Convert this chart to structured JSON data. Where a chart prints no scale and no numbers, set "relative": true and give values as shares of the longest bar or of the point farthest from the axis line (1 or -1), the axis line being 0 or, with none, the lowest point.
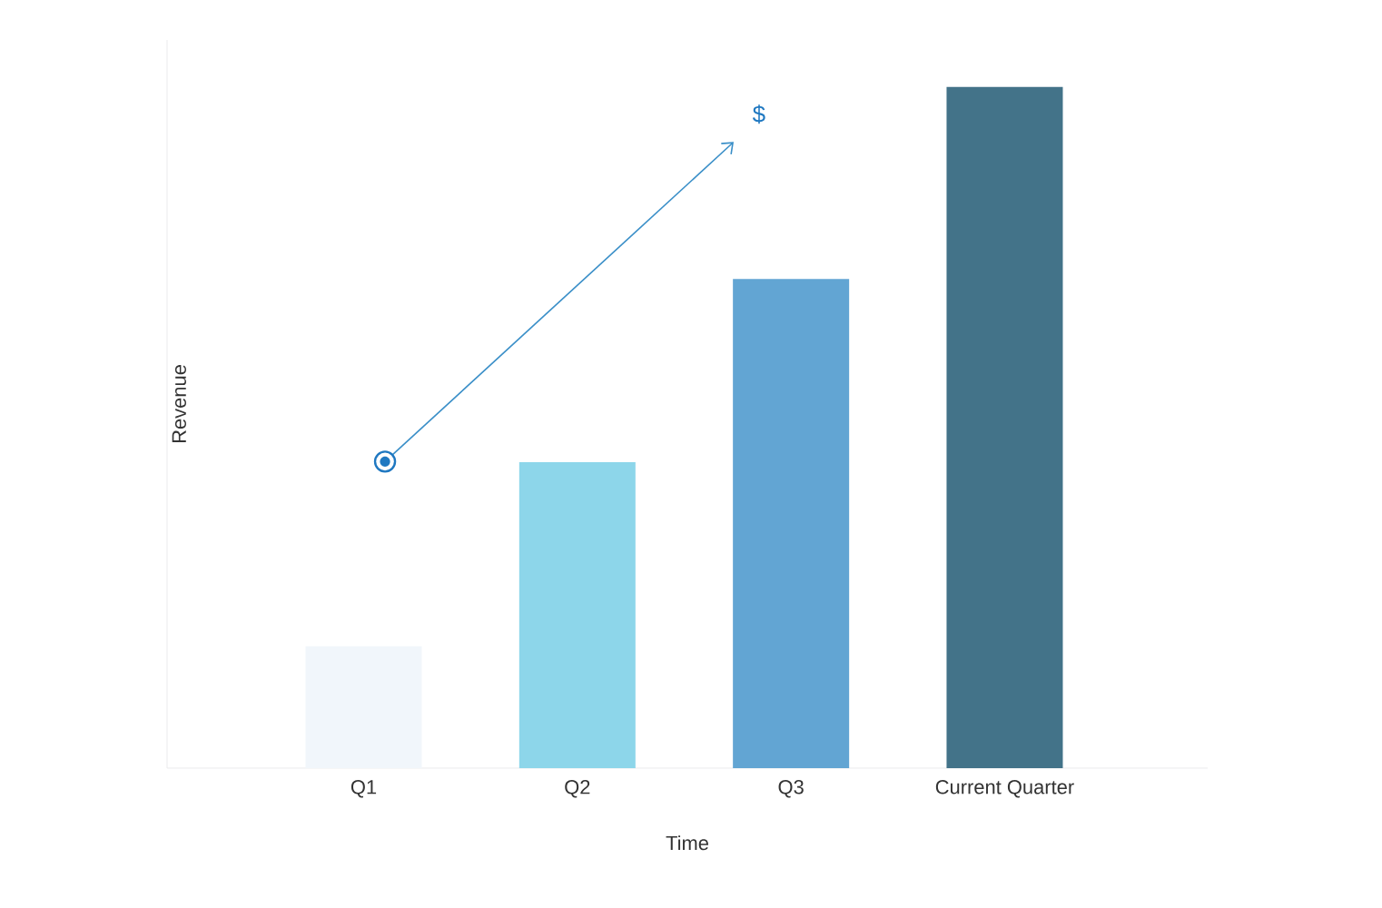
{
  "chart_data": {
    "type": "bar",
    "relative": true,
    "xlabel": "Time",
    "ylabel": "Revenue",
    "categories": [
      "Q1",
      "Q2",
      "Q3",
      "Current Quarter"
    ],
    "values": [
      0.179,
      0.449,
      0.718,
      1
    ],
    "colors": [
      "#f1f6fb",
      "#8dd6ea",
      "#62a5d3",
      "#437389"
    ],
    "annotations": [
      "$"
    ]
  }
}
